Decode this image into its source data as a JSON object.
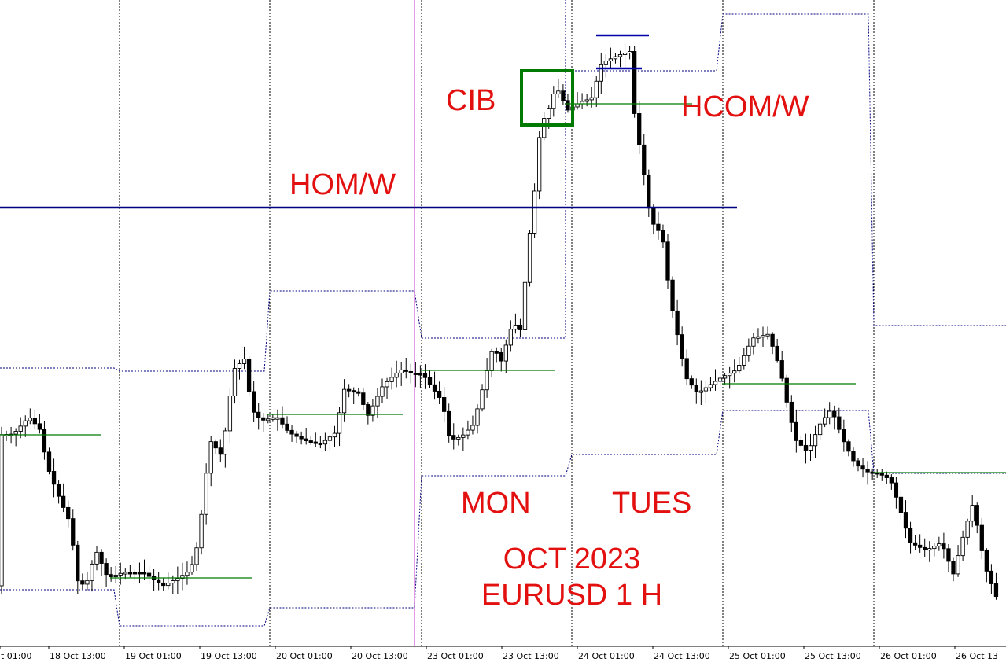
{
  "chart_data": {
    "type": "candlestick",
    "title": "OCT 2023",
    "subtitle": "EURUSD 1 H",
    "day_labels": {
      "monday": "MON",
      "tuesday": "TUES"
    },
    "annotations": {
      "cib": "CIB",
      "hom_w": "HOM/W",
      "hcom_w": "HCOM/W"
    },
    "x_tick_labels": [
      "t 01:00",
      "18 Oct 13:00",
      "19 Oct 01:00",
      "19 Oct 13:00",
      "20 Oct 01:00",
      "20 Oct 13:00",
      "23 Oct 01:00",
      "23 Oct 13:00",
      "24 Oct 01:00",
      "24 Oct 13:00",
      "25 Oct 01:00",
      "25 Oct 13:00",
      "26 Oct 01:00",
      "26 Oct 13"
    ],
    "grid": true,
    "colors": {
      "annotation_text": "#e31010",
      "level_line": "#000080",
      "midline": "#007a00",
      "cib_box": "#007a00",
      "range_box": "#000080",
      "week_separator": "#cc33cc",
      "bull_body": "#ffffff",
      "bear_body": "#000000"
    }
  }
}
